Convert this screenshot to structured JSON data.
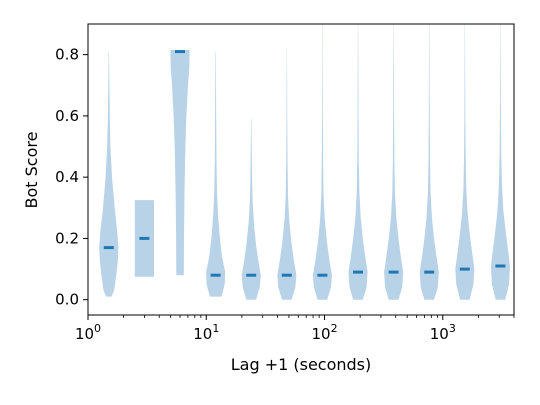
{
  "chart_data": {
    "type": "violin",
    "xlabel": "Lag +1 (seconds)",
    "ylabel": "Bot Score",
    "xscale": "log",
    "xlim": [
      1,
      4000
    ],
    "ylim": [
      -0.05,
      0.9
    ],
    "grid": false,
    "violin_color": "#b8d3e8",
    "median_color": "#1f77b4",
    "x_ticks": [
      {
        "base": "10",
        "exp": "0",
        "value": 1
      },
      {
        "base": "10",
        "exp": "1",
        "value": 10
      },
      {
        "base": "10",
        "exp": "2",
        "value": 100
      },
      {
        "base": "10",
        "exp": "3",
        "value": 1000
      }
    ],
    "y_ticks": [
      {
        "label": "0.0",
        "value": 0.0
      },
      {
        "label": "0.2",
        "value": 0.2
      },
      {
        "label": "0.4",
        "value": 0.4
      },
      {
        "label": "0.6",
        "value": 0.6
      },
      {
        "label": "0.8",
        "value": 0.8
      }
    ],
    "series": [
      {
        "x": 1.5,
        "median": 0.17,
        "min": 0.01,
        "max": 0.81,
        "shape": [
          [
            0.01,
            0.25
          ],
          [
            0.03,
            0.5
          ],
          [
            0.08,
            0.7
          ],
          [
            0.13,
            0.85
          ],
          [
            0.17,
            0.9
          ],
          [
            0.22,
            0.8
          ],
          [
            0.3,
            0.55
          ],
          [
            0.4,
            0.3
          ],
          [
            0.5,
            0.15
          ],
          [
            0.6,
            0.09
          ],
          [
            0.7,
            0.05
          ],
          [
            0.81,
            0.02
          ]
        ]
      },
      {
        "x": 3,
        "median": 0.2,
        "min": 0.075,
        "max": 0.325,
        "shape": [
          [
            0.075,
            0.9
          ],
          [
            0.325,
            0.9
          ]
        ]
      },
      {
        "x": 6,
        "median": 0.81,
        "min": 0.08,
        "max": 0.815,
        "shape": [
          [
            0.08,
            0.35
          ],
          [
            0.2,
            0.37
          ],
          [
            0.35,
            0.42
          ],
          [
            0.5,
            0.5
          ],
          [
            0.6,
            0.6
          ],
          [
            0.7,
            0.75
          ],
          [
            0.76,
            0.88
          ],
          [
            0.8,
            0.9
          ],
          [
            0.815,
            0.9
          ]
        ]
      },
      {
        "x": 12,
        "median": 0.08,
        "min": 0.01,
        "max": 0.81,
        "shape": [
          [
            0.01,
            0.55
          ],
          [
            0.05,
            0.85
          ],
          [
            0.09,
            0.9
          ],
          [
            0.14,
            0.6
          ],
          [
            0.2,
            0.4
          ],
          [
            0.28,
            0.22
          ],
          [
            0.35,
            0.13
          ],
          [
            0.45,
            0.08
          ],
          [
            0.6,
            0.05
          ],
          [
            0.81,
            0.02
          ]
        ]
      },
      {
        "x": 24,
        "median": 0.08,
        "min": 0.0,
        "max": 0.59,
        "shape": [
          [
            0.0,
            0.45
          ],
          [
            0.04,
            0.8
          ],
          [
            0.08,
            0.9
          ],
          [
            0.13,
            0.65
          ],
          [
            0.18,
            0.45
          ],
          [
            0.25,
            0.25
          ],
          [
            0.33,
            0.12
          ],
          [
            0.42,
            0.07
          ],
          [
            0.5,
            0.04
          ],
          [
            0.59,
            0.02
          ]
        ]
      },
      {
        "x": 48,
        "median": 0.08,
        "min": 0.0,
        "max": 0.82,
        "shape": [
          [
            0.0,
            0.45
          ],
          [
            0.04,
            0.8
          ],
          [
            0.08,
            0.9
          ],
          [
            0.13,
            0.65
          ],
          [
            0.19,
            0.42
          ],
          [
            0.26,
            0.22
          ],
          [
            0.34,
            0.11
          ],
          [
            0.45,
            0.06
          ],
          [
            0.6,
            0.035
          ],
          [
            0.82,
            0.015
          ]
        ]
      },
      {
        "x": 96,
        "median": 0.08,
        "min": 0.0,
        "max": 0.9,
        "shape": [
          [
            0.0,
            0.45
          ],
          [
            0.04,
            0.8
          ],
          [
            0.08,
            0.9
          ],
          [
            0.13,
            0.65
          ],
          [
            0.19,
            0.42
          ],
          [
            0.26,
            0.22
          ],
          [
            0.34,
            0.11
          ],
          [
            0.45,
            0.06
          ],
          [
            0.6,
            0.035
          ],
          [
            0.9,
            0.015
          ]
        ]
      },
      {
        "x": 192,
        "median": 0.09,
        "min": 0.0,
        "max": 0.9,
        "shape": [
          [
            0.0,
            0.45
          ],
          [
            0.04,
            0.8
          ],
          [
            0.09,
            0.9
          ],
          [
            0.14,
            0.68
          ],
          [
            0.2,
            0.45
          ],
          [
            0.27,
            0.25
          ],
          [
            0.35,
            0.13
          ],
          [
            0.45,
            0.07
          ],
          [
            0.6,
            0.04
          ],
          [
            0.9,
            0.015
          ]
        ]
      },
      {
        "x": 384,
        "median": 0.09,
        "min": 0.0,
        "max": 0.9,
        "shape": [
          [
            0.0,
            0.45
          ],
          [
            0.04,
            0.8
          ],
          [
            0.09,
            0.9
          ],
          [
            0.14,
            0.68
          ],
          [
            0.2,
            0.45
          ],
          [
            0.27,
            0.25
          ],
          [
            0.35,
            0.13
          ],
          [
            0.45,
            0.07
          ],
          [
            0.6,
            0.04
          ],
          [
            0.9,
            0.015
          ]
        ]
      },
      {
        "x": 768,
        "median": 0.09,
        "min": 0.0,
        "max": 0.9,
        "shape": [
          [
            0.0,
            0.45
          ],
          [
            0.04,
            0.8
          ],
          [
            0.09,
            0.9
          ],
          [
            0.14,
            0.68
          ],
          [
            0.2,
            0.45
          ],
          [
            0.27,
            0.25
          ],
          [
            0.35,
            0.13
          ],
          [
            0.45,
            0.07
          ],
          [
            0.6,
            0.04
          ],
          [
            0.9,
            0.015
          ]
        ]
      },
      {
        "x": 1536,
        "median": 0.1,
        "min": 0.0,
        "max": 0.9,
        "shape": [
          [
            0.0,
            0.45
          ],
          [
            0.05,
            0.8
          ],
          [
            0.1,
            0.9
          ],
          [
            0.15,
            0.7
          ],
          [
            0.21,
            0.48
          ],
          [
            0.28,
            0.27
          ],
          [
            0.36,
            0.14
          ],
          [
            0.46,
            0.08
          ],
          [
            0.6,
            0.045
          ],
          [
            0.9,
            0.015
          ]
        ]
      },
      {
        "x": 3072,
        "median": 0.11,
        "min": 0.0,
        "max": 0.9,
        "shape": [
          [
            0.0,
            0.45
          ],
          [
            0.05,
            0.8
          ],
          [
            0.11,
            0.9
          ],
          [
            0.16,
            0.72
          ],
          [
            0.22,
            0.5
          ],
          [
            0.29,
            0.28
          ],
          [
            0.37,
            0.15
          ],
          [
            0.47,
            0.08
          ],
          [
            0.6,
            0.045
          ],
          [
            0.9,
            0.015
          ]
        ]
      }
    ]
  }
}
